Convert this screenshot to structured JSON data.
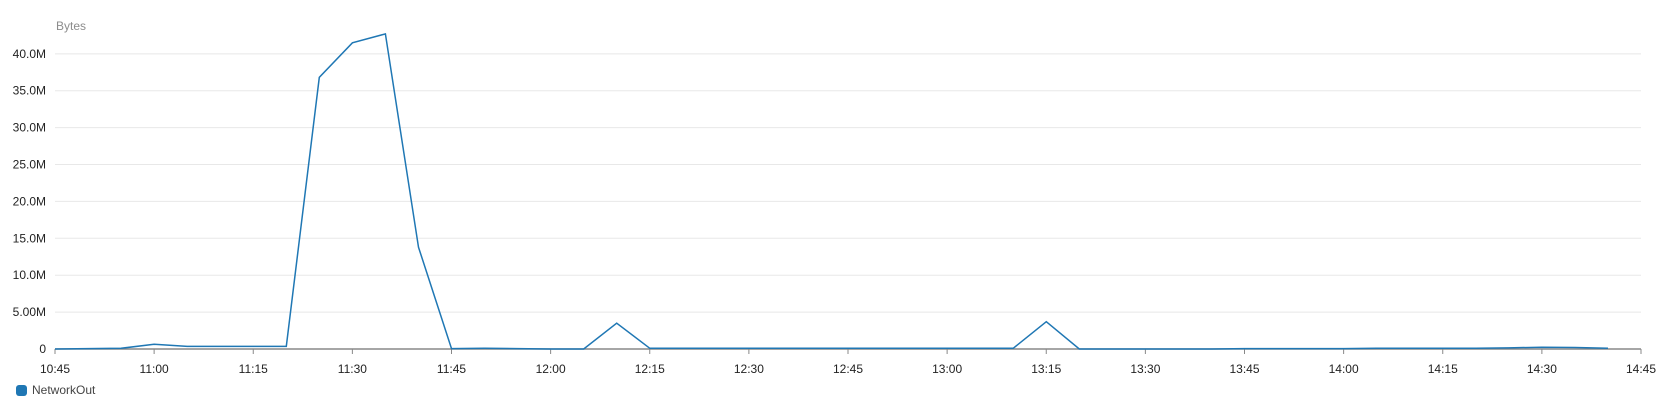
{
  "chart_data": {
    "type": "line",
    "ylabel": "Bytes",
    "xlabel": "",
    "title": "",
    "x_ticks": [
      "10:45",
      "11:00",
      "11:15",
      "11:30",
      "11:45",
      "12:00",
      "12:15",
      "12:30",
      "12:45",
      "13:00",
      "13:15",
      "13:30",
      "13:45",
      "14:00",
      "14:15",
      "14:30",
      "14:45"
    ],
    "y_ticks": [
      {
        "value": 0,
        "label": "0"
      },
      {
        "value": 5000000,
        "label": "5.00M"
      },
      {
        "value": 10000000,
        "label": "10.0M"
      },
      {
        "value": 15000000,
        "label": "15.0M"
      },
      {
        "value": 20000000,
        "label": "20.0M"
      },
      {
        "value": 25000000,
        "label": "25.0M"
      },
      {
        "value": 30000000,
        "label": "30.0M"
      },
      {
        "value": 35000000,
        "label": "35.0M"
      },
      {
        "value": 40000000,
        "label": "40.0M"
      }
    ],
    "xlim": [
      "10:45",
      "14:45"
    ],
    "ylim": [
      0,
      43500000
    ],
    "grid": true,
    "legend_position": "bottom-left",
    "series": [
      {
        "name": "NetworkOut",
        "color": "#1f77b4",
        "x": [
          "10:45",
          "10:50",
          "10:55",
          "11:00",
          "11:05",
          "11:10",
          "11:15",
          "11:20",
          "11:25",
          "11:30",
          "11:35",
          "11:40",
          "11:45",
          "11:50",
          "11:55",
          "12:00",
          "12:05",
          "12:10",
          "12:15",
          "12:20",
          "12:25",
          "12:30",
          "12:35",
          "12:40",
          "12:45",
          "12:50",
          "12:55",
          "13:00",
          "13:05",
          "13:10",
          "13:15",
          "13:20",
          "13:25",
          "13:30",
          "13:35",
          "13:40",
          "13:45",
          "13:50",
          "13:55",
          "14:00",
          "14:05",
          "14:10",
          "14:15",
          "14:20",
          "14:25",
          "14:30",
          "14:35",
          "14:40"
        ],
        "values": [
          0,
          50000,
          100000,
          650000,
          350000,
          350000,
          350000,
          350000,
          36800000,
          41500000,
          42700000,
          13800000,
          50000,
          100000,
          50000,
          0,
          0,
          3500000,
          100000,
          100000,
          100000,
          100000,
          100000,
          100000,
          100000,
          100000,
          100000,
          100000,
          100000,
          100000,
          3700000,
          0,
          0,
          0,
          0,
          0,
          50000,
          50000,
          50000,
          50000,
          100000,
          100000,
          100000,
          100000,
          150000,
          250000,
          200000,
          100000
        ]
      }
    ]
  }
}
